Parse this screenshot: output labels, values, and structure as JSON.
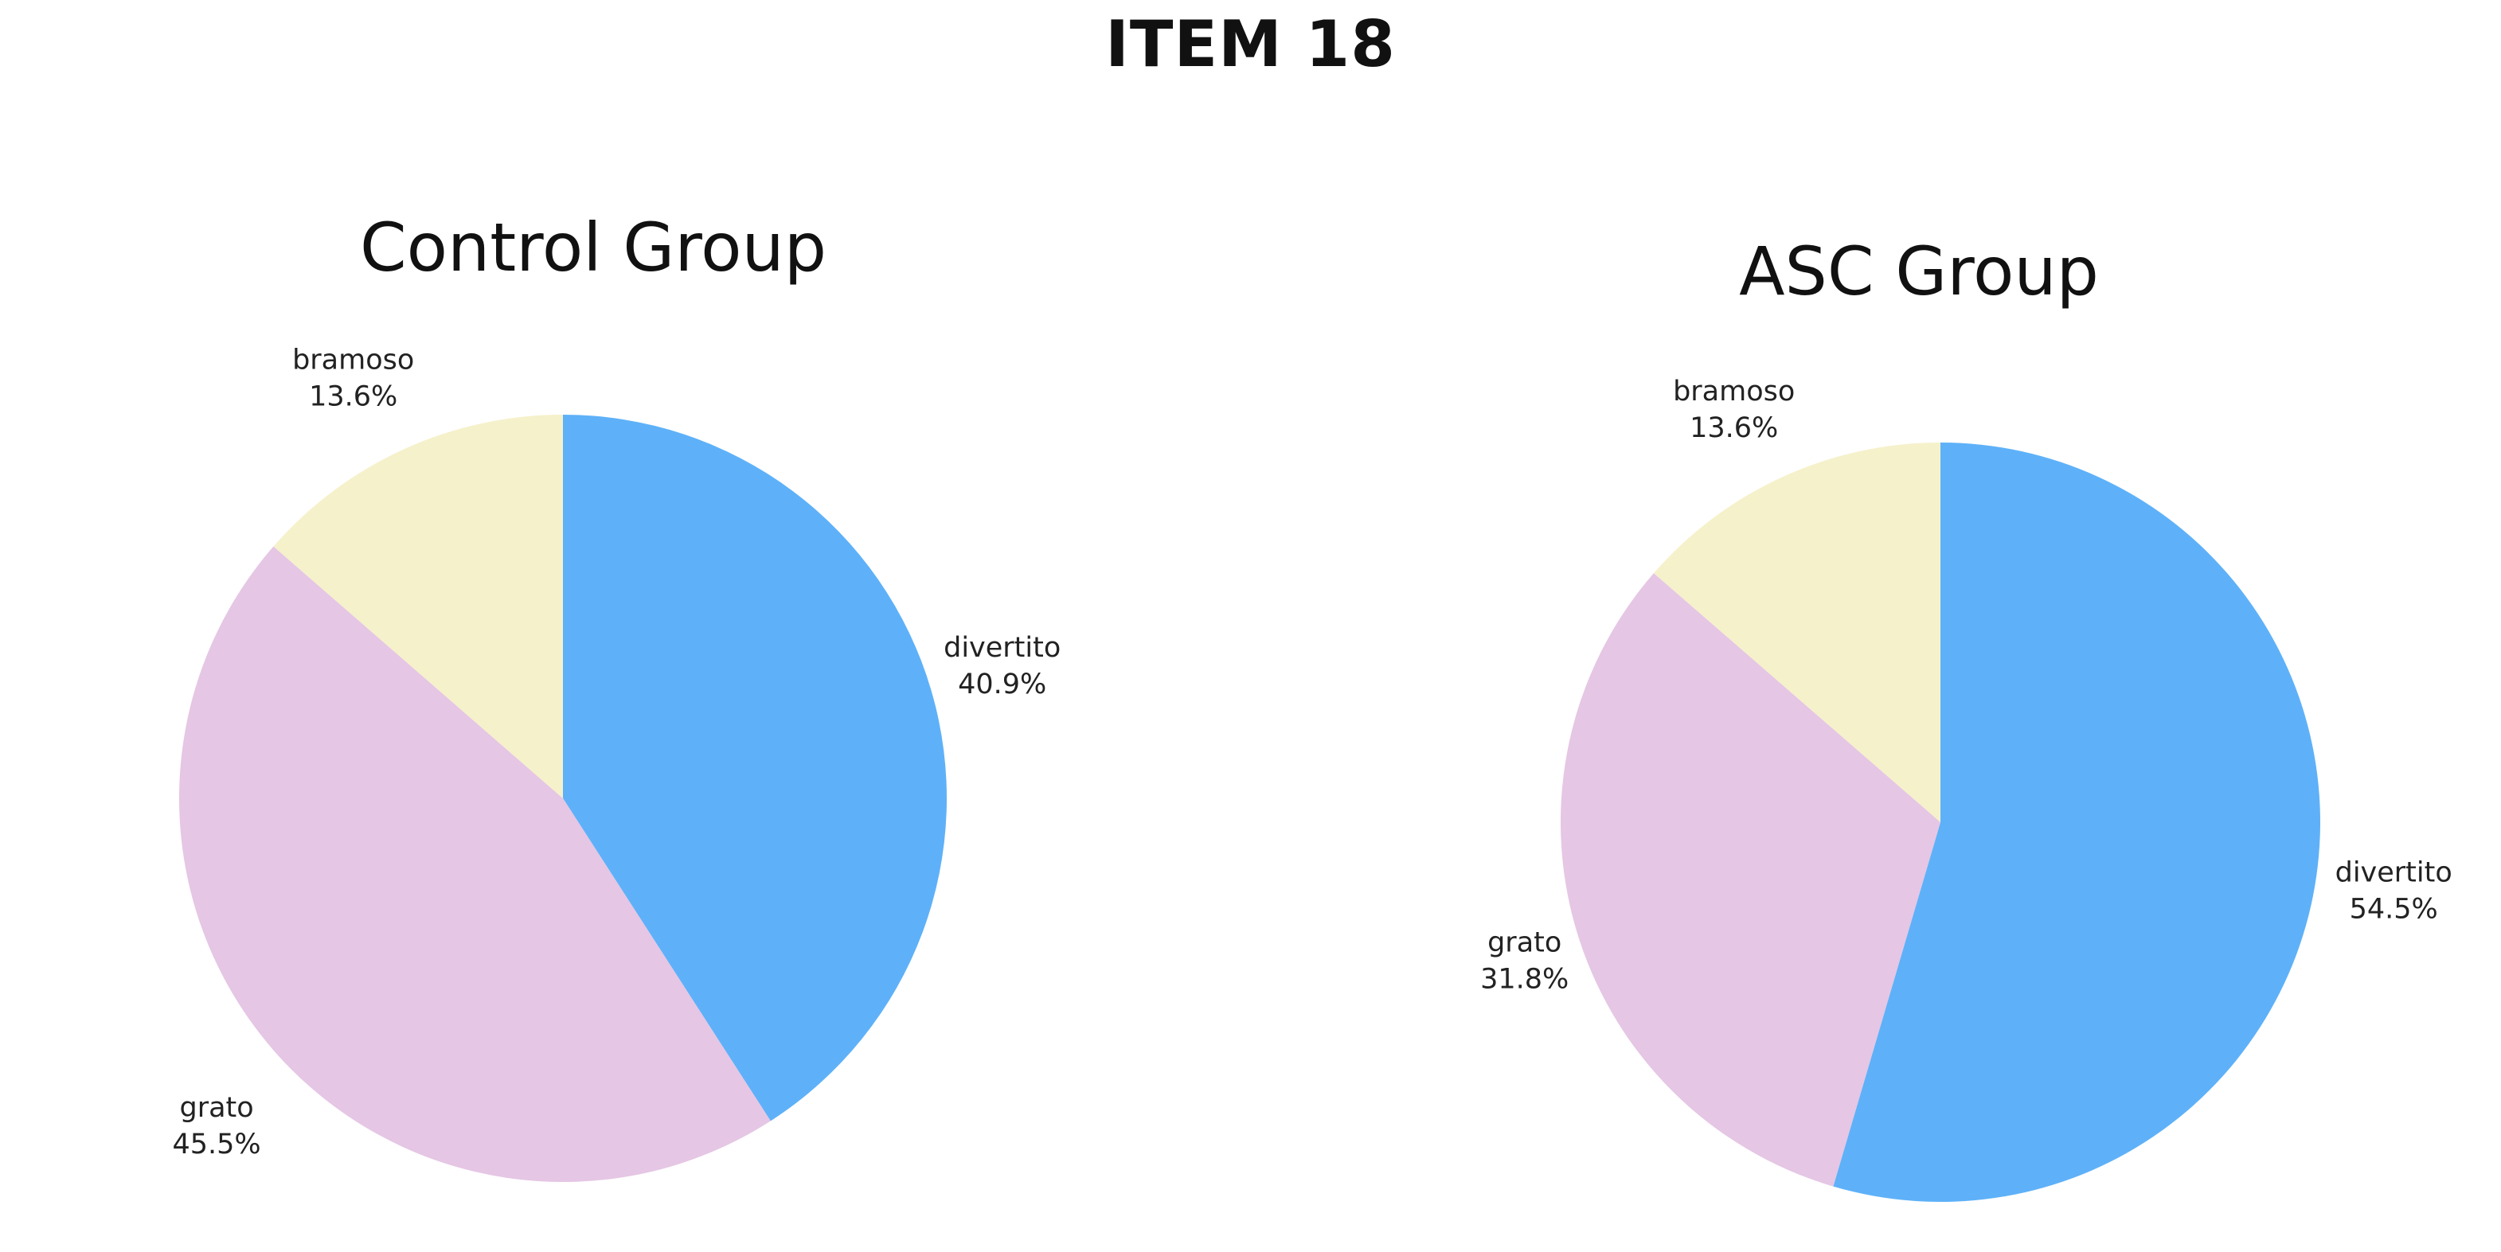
{
  "title": "ITEM 18",
  "chart_data": [
    {
      "type": "pie",
      "title": "Control Group",
      "categories": [
        "divertito",
        "grato",
        "bramoso"
      ],
      "values": [
        40.9,
        45.5,
        13.6
      ],
      "labels": [
        "40.9%",
        "45.5%",
        "13.6%"
      ],
      "colors": [
        "#5eb1f8",
        "#e5c6e4",
        "#f5f1cb"
      ],
      "start": "12 o'clock",
      "direction": "clockwise"
    },
    {
      "type": "pie",
      "title": "ASC Group",
      "categories": [
        "divertito",
        "grato",
        "bramoso"
      ],
      "values": [
        54.5,
        31.8,
        13.6
      ],
      "labels": [
        "54.5%",
        "31.8%",
        "13.6%"
      ],
      "colors": [
        "#5eb1f8",
        "#e5c6e4",
        "#f5f1cb"
      ],
      "start": "12 o'clock",
      "direction": "clockwise"
    }
  ]
}
